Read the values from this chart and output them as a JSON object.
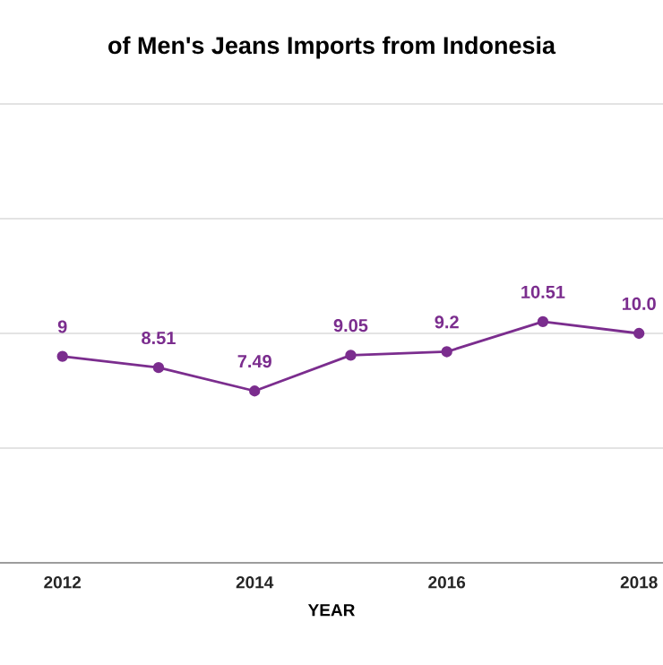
{
  "chart_data": {
    "type": "line",
    "title": "of Men's Jeans Imports from Indonesia",
    "xlabel": "YEAR",
    "x": [
      2012,
      2013,
      2014,
      2015,
      2016,
      2017,
      2018
    ],
    "series": [
      {
        "color": "#7b2d8e",
        "values": [
          9,
          8.51,
          7.49,
          9.05,
          9.2,
          10.51,
          10.0
        ],
        "value_labels": [
          "9",
          "8.51",
          "7.49",
          "9.05",
          "9.2",
          "10.51",
          "10.0"
        ]
      }
    ],
    "xlim": [
      2011.35,
      2018.25
    ],
    "xticks": [
      2012,
      2014,
      2016,
      2018
    ],
    "ylim": [
      0,
      20
    ],
    "yticks": [
      {
        "value": 0,
        "label": null
      },
      {
        "value": 5,
        "label": null
      },
      {
        "value": 10,
        "label": null
      },
      {
        "value": 15,
        "label": null
      },
      {
        "value": 20,
        "label": null
      }
    ],
    "tick_labels": "x",
    "grid": "y",
    "marker": "circle",
    "line_style": "solid"
  }
}
